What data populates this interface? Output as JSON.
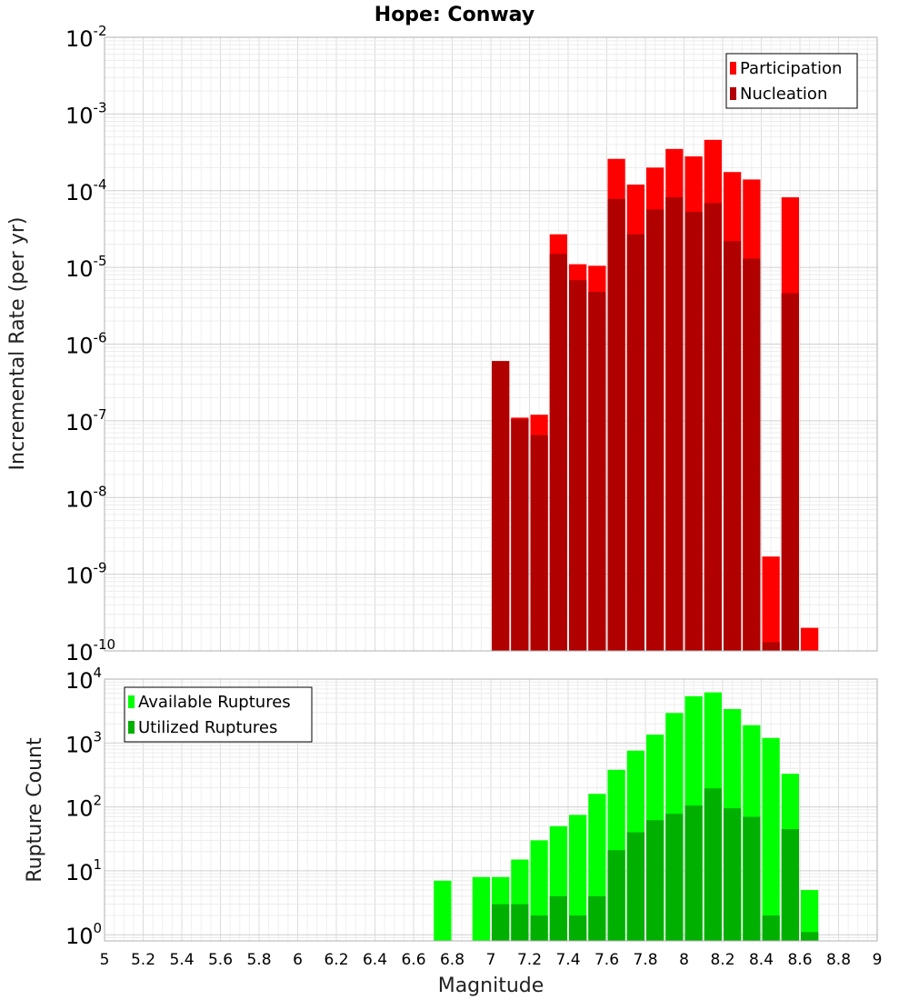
{
  "chart_data": [
    {
      "type": "bar",
      "title": "Hope: Conway",
      "xlabel": "Magnitude",
      "ylabel": "Incremental Rate (per yr)",
      "yscale": "log",
      "ylim": [
        1e-10,
        0.01
      ],
      "xlim": [
        5,
        9
      ],
      "grid": true,
      "legend_placement": "top-right",
      "bar_width": 0.1,
      "overlay": true,
      "series": [
        {
          "name": "Participation",
          "color": "#ff0000",
          "x": [
            7.05,
            7.15,
            7.25,
            7.35,
            7.45,
            7.55,
            7.65,
            7.75,
            7.85,
            7.95,
            8.05,
            8.15,
            8.25,
            8.35,
            8.45,
            8.55,
            8.65
          ],
          "values": [
            6e-07,
            1.1e-07,
            1.2e-07,
            2.7e-05,
            1.1e-05,
            1.05e-05,
            0.00026,
            0.00012,
            0.0002,
            0.00035,
            0.00028,
            0.00046,
            0.000175,
            0.00014,
            1.7e-09,
            8.2e-05,
            2e-10
          ]
        },
        {
          "name": "Nucleation",
          "color": "#b00000",
          "x": [
            7.05,
            7.15,
            7.25,
            7.35,
            7.45,
            7.55,
            7.65,
            7.75,
            7.85,
            7.95,
            8.05,
            8.15,
            8.25,
            8.35,
            8.45,
            8.55
          ],
          "values": [
            6e-07,
            1.05e-07,
            6.5e-08,
            1.5e-05,
            6.8e-06,
            4.8e-06,
            7.8e-05,
            2.7e-05,
            5.7e-05,
            8.2e-05,
            5.3e-05,
            6.9e-05,
            2.2e-05,
            1.3e-05,
            1.3e-10,
            4.6e-06
          ]
        }
      ],
      "yticks": [
        {
          "base": "10",
          "exp": "-2"
        },
        {
          "base": "10",
          "exp": "-3"
        },
        {
          "base": "10",
          "exp": "-4"
        },
        {
          "base": "10",
          "exp": "-5"
        },
        {
          "base": "10",
          "exp": "-6"
        },
        {
          "base": "10",
          "exp": "-7"
        },
        {
          "base": "10",
          "exp": "-8"
        },
        {
          "base": "10",
          "exp": "-9"
        },
        {
          "base": "10",
          "exp": "-10"
        }
      ]
    },
    {
      "type": "bar",
      "xlabel": "Magnitude",
      "ylabel": "Rupture Count",
      "yscale": "log",
      "ylim": [
        0.8,
        10000
      ],
      "xlim": [
        5,
        9
      ],
      "grid": true,
      "legend_placement": "top-left",
      "bar_width": 0.1,
      "overlay": true,
      "series": [
        {
          "name": "Available Ruptures",
          "color": "#00ff00",
          "x": [
            6.75,
            6.95,
            7.05,
            7.15,
            7.25,
            7.35,
            7.45,
            7.55,
            7.65,
            7.75,
            7.85,
            7.95,
            8.05,
            8.15,
            8.25,
            8.35,
            8.45,
            8.55,
            8.65
          ],
          "values": [
            7,
            8,
            8,
            15,
            30,
            50,
            75,
            160,
            380,
            760,
            1350,
            2950,
            5400,
            6200,
            3400,
            1900,
            1200,
            330,
            5
          ]
        },
        {
          "name": "Utilized Ruptures",
          "color": "#00b000",
          "x": [
            7.05,
            7.15,
            7.25,
            7.35,
            7.45,
            7.55,
            7.65,
            7.75,
            7.85,
            7.95,
            8.05,
            8.15,
            8.25,
            8.35,
            8.45,
            8.55,
            8.65
          ],
          "values": [
            3,
            3,
            2,
            4,
            2,
            4,
            21,
            40,
            62,
            78,
            105,
            195,
            95,
            70,
            2,
            45,
            1.1
          ]
        }
      ],
      "yticks": [
        {
          "base": "10",
          "exp": "4"
        },
        {
          "base": "10",
          "exp": "3"
        },
        {
          "base": "10",
          "exp": "2"
        },
        {
          "base": "10",
          "exp": "1"
        },
        {
          "base": "10",
          "exp": "0"
        }
      ]
    }
  ],
  "xticks": [
    "5",
    "5.2",
    "5.4",
    "5.6",
    "5.8",
    "6",
    "6.2",
    "6.4",
    "6.6",
    "6.8",
    "7",
    "7.2",
    "7.4",
    "7.6",
    "7.8",
    "8",
    "8.2",
    "8.4",
    "8.6",
    "8.8",
    "9"
  ]
}
